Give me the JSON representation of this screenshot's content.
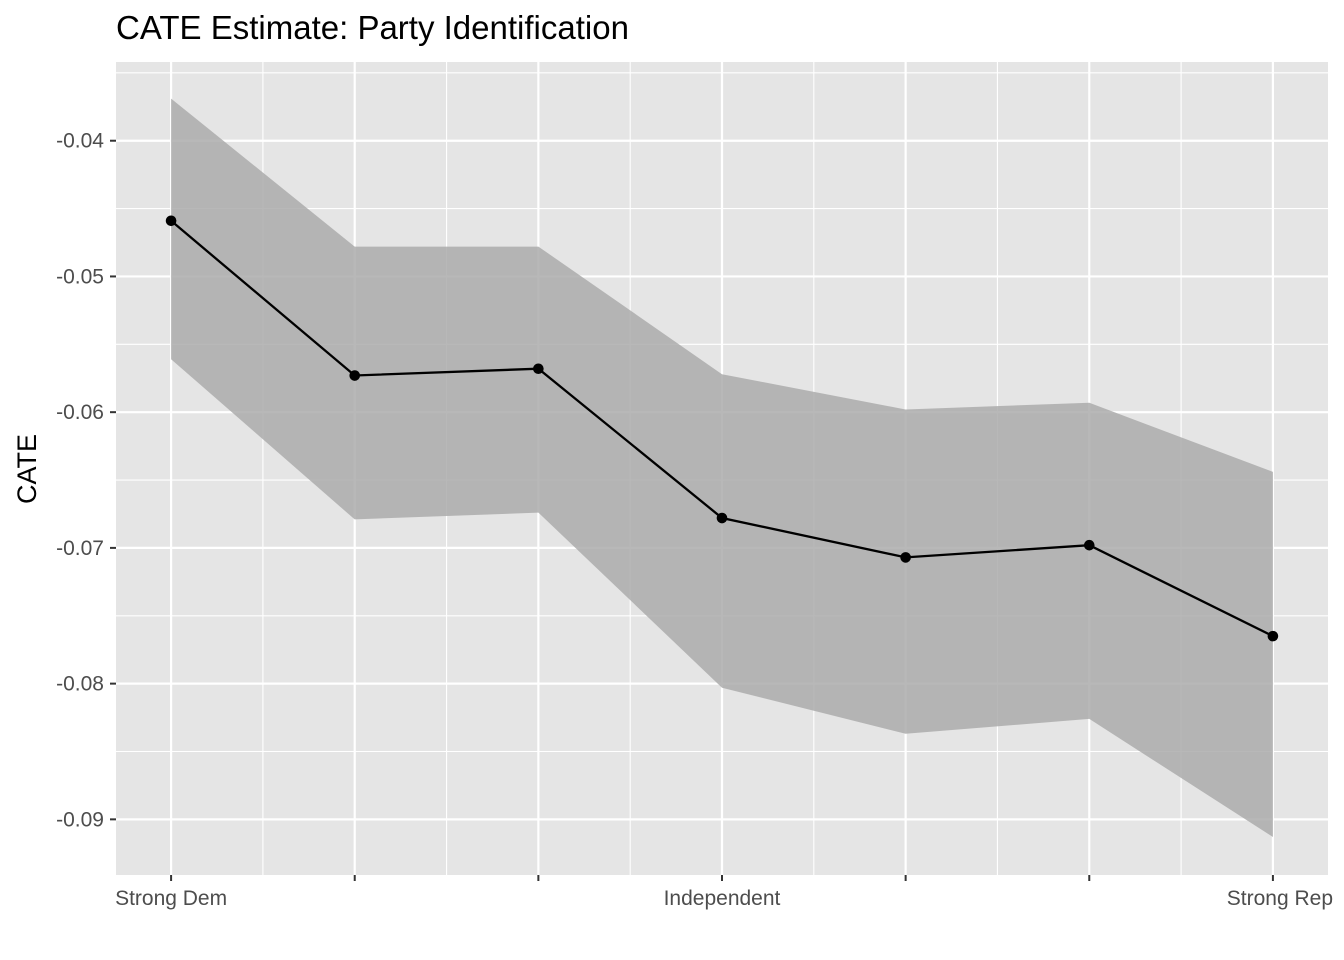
{
  "chart_data": {
    "type": "line",
    "title": "CATE Estimate: Party Identification",
    "xlabel": "",
    "ylabel": "CATE",
    "x": [
      1,
      2,
      3,
      4,
      5,
      6,
      7
    ],
    "x_tick_labels": [
      "Strong Dem",
      "",
      "",
      "Independent",
      "",
      "",
      "Strong Rep"
    ],
    "series": [
      {
        "values": [
          -0.0459,
          -0.0573,
          -0.0568,
          -0.0678,
          -0.0707,
          -0.0698,
          -0.0765
        ],
        "lower": [
          -0.0561,
          -0.0679,
          -0.0674,
          -0.0803,
          -0.0837,
          -0.0826,
          -0.0913
        ],
        "upper": [
          -0.0369,
          -0.0478,
          -0.0478,
          -0.0572,
          -0.0598,
          -0.0593,
          -0.0644
        ]
      }
    ],
    "ylim": [
      -0.0941,
      -0.0342
    ],
    "xlim": [
      0.7,
      7.3
    ],
    "y_ticks": [
      -0.04,
      -0.05,
      -0.06,
      -0.07,
      -0.08,
      -0.09
    ],
    "y_tick_labels": [
      "-0.04",
      "-0.05",
      "-0.06",
      "-0.07",
      "-0.08",
      "-0.09"
    ],
    "grid": true,
    "colors": {
      "panel_background": "#e5e5e5",
      "grid": "#ffffff",
      "ribbon": "#ababab",
      "line": "#000000",
      "tick": "#333333"
    }
  }
}
